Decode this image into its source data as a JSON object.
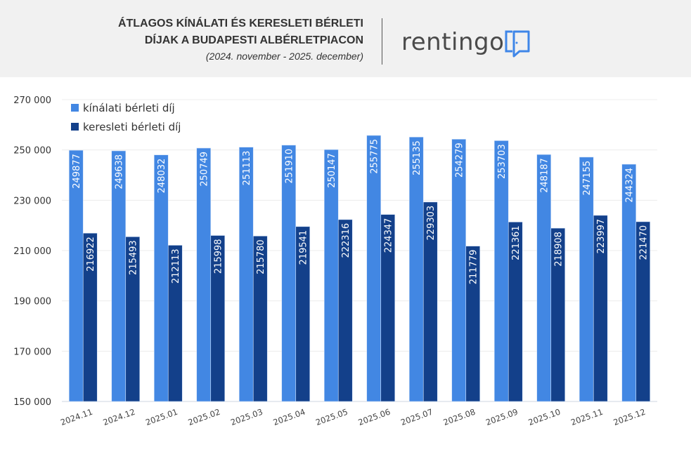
{
  "header": {
    "title_line1": "ÁTLAGOS KÍNÁLATI ÉS KERESLETI BÉRLETI",
    "title_line2": "DÍJAK A BUDAPESTI ALBÉRLETPIACON",
    "subtitle": "(2024. november - 2025. december)",
    "logo_text": "rentingo",
    "logo_icon": "door-icon"
  },
  "chart_data": {
    "type": "bar",
    "title": "ÁTLAGOS KÍNÁLATI ÉS KERESLETI BÉRLETI DÍJAK A BUDAPESTI ALBÉRLETPIACON",
    "categories": [
      "2024.11",
      "2024.12",
      "2025.01",
      "2025.02",
      "2025.03",
      "2025.04",
      "2025.05",
      "2025.06",
      "2025.07",
      "2025.08",
      "2025.09",
      "2025.10",
      "2025.11",
      "2025.12"
    ],
    "series": [
      {
        "name": "kínálati bérleti díj",
        "color": "#4287e3",
        "values": [
          249877,
          249638,
          248032,
          250749,
          251113,
          251910,
          250147,
          255775,
          255135,
          254279,
          253703,
          248187,
          247155,
          244324
        ]
      },
      {
        "name": "keresleti bérleti díj",
        "color": "#13408a",
        "values": [
          216922,
          215493,
          212113,
          215998,
          215780,
          219541,
          222316,
          224347,
          229303,
          211779,
          221361,
          218908,
          223997,
          221470
        ]
      }
    ],
    "ylim": [
      150000,
      270000
    ],
    "yticks": [
      150000,
      170000,
      190000,
      210000,
      230000,
      250000,
      270000
    ],
    "ytick_labels": [
      "150 000",
      "170 000",
      "190 000",
      "210 000",
      "230 000",
      "250 000",
      "270 000"
    ],
    "grid": true,
    "legend": "top-left",
    "data_labels": "inside-rotated"
  }
}
